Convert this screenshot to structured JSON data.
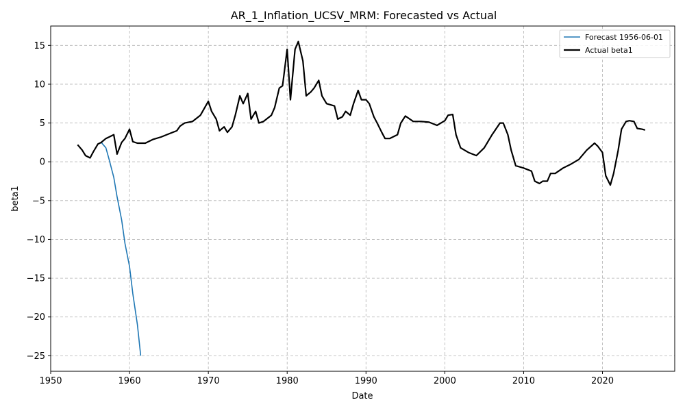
{
  "chart_data": {
    "type": "line",
    "title": "AR_1_Inflation_UCSV_MRM: Forecasted vs Actual",
    "xlabel": "Date",
    "ylabel": "beta1",
    "xlim": [
      "1950-01-01",
      "2029-03-01"
    ],
    "ylim": [
      -27,
      17.5
    ],
    "x_ticks": [
      1950,
      1960,
      1970,
      1980,
      1990,
      2000,
      2010,
      2020
    ],
    "y_ticks": [
      -25,
      -20,
      -15,
      -10,
      -5,
      0,
      5,
      10,
      15
    ],
    "grid": true,
    "legend_position": "top-right",
    "series": [
      {
        "name": "Forecast 1956-06-01",
        "color": "#1f77b4",
        "style": "solid",
        "points": [
          [
            "1956-06-01",
            2.5
          ],
          [
            "1957-01-01",
            1.8
          ],
          [
            "1957-06-01",
            0.3
          ],
          [
            "1958-01-01",
            -2.0
          ],
          [
            "1958-06-01",
            -4.5
          ],
          [
            "1959-01-01",
            -7.5
          ],
          [
            "1959-06-01",
            -10.5
          ],
          [
            "1960-01-01",
            -13.5
          ],
          [
            "1960-06-01",
            -17.0
          ],
          [
            "1961-01-01",
            -21.0
          ],
          [
            "1961-06-01",
            -25.0
          ]
        ]
      },
      {
        "name": "Actual beta1",
        "color": "#000000",
        "style": "solid",
        "points": [
          [
            "1953-06-01",
            2.2
          ],
          [
            "1954-01-01",
            1.5
          ],
          [
            "1954-06-01",
            0.8
          ],
          [
            "1955-01-01",
            0.5
          ],
          [
            "1955-06-01",
            1.3
          ],
          [
            "1956-01-01",
            2.3
          ],
          [
            "1956-06-01",
            2.5
          ],
          [
            "1957-01-01",
            3.0
          ],
          [
            "1957-06-01",
            3.2
          ],
          [
            "1958-01-01",
            3.5
          ],
          [
            "1958-06-01",
            1.0
          ],
          [
            "1959-01-01",
            2.5
          ],
          [
            "1959-06-01",
            3.0
          ],
          [
            "1960-01-01",
            4.2
          ],
          [
            "1960-06-01",
            2.6
          ],
          [
            "1961-01-01",
            2.4
          ],
          [
            "1962-01-01",
            2.4
          ],
          [
            "1963-01-01",
            2.9
          ],
          [
            "1964-01-01",
            3.2
          ],
          [
            "1965-01-01",
            3.6
          ],
          [
            "1966-01-01",
            4.0
          ],
          [
            "1966-06-01",
            4.6
          ],
          [
            "1967-01-01",
            5.0
          ],
          [
            "1968-01-01",
            5.2
          ],
          [
            "1969-01-01",
            6.0
          ],
          [
            "1970-01-01",
            7.8
          ],
          [
            "1970-06-01",
            6.5
          ],
          [
            "1971-01-01",
            5.5
          ],
          [
            "1971-06-01",
            4.0
          ],
          [
            "1972-01-01",
            4.5
          ],
          [
            "1972-06-01",
            3.8
          ],
          [
            "1973-01-01",
            4.5
          ],
          [
            "1973-06-01",
            6.0
          ],
          [
            "1974-01-01",
            8.5
          ],
          [
            "1974-06-01",
            7.5
          ],
          [
            "1975-01-01",
            8.8
          ],
          [
            "1975-06-01",
            5.5
          ],
          [
            "1976-01-01",
            6.5
          ],
          [
            "1976-06-01",
            5.0
          ],
          [
            "1977-01-01",
            5.2
          ],
          [
            "1978-01-01",
            6.0
          ],
          [
            "1978-06-01",
            7.0
          ],
          [
            "1979-01-01",
            9.5
          ],
          [
            "1979-06-01",
            9.8
          ],
          [
            "1980-01-01",
            14.5
          ],
          [
            "1980-06-01",
            8.0
          ],
          [
            "1981-01-01",
            14.5
          ],
          [
            "1981-06-01",
            15.5
          ],
          [
            "1982-01-01",
            13.0
          ],
          [
            "1982-06-01",
            8.5
          ],
          [
            "1983-01-01",
            9.0
          ],
          [
            "1983-06-01",
            9.5
          ],
          [
            "1984-01-01",
            10.5
          ],
          [
            "1984-06-01",
            8.5
          ],
          [
            "1985-01-01",
            7.5
          ],
          [
            "1986-01-01",
            7.2
          ],
          [
            "1986-06-01",
            5.5
          ],
          [
            "1987-01-01",
            5.8
          ],
          [
            "1987-06-01",
            6.5
          ],
          [
            "1988-01-01",
            6.0
          ],
          [
            "1988-06-01",
            7.5
          ],
          [
            "1989-01-01",
            9.2
          ],
          [
            "1989-06-01",
            8.0
          ],
          [
            "1990-01-01",
            8.0
          ],
          [
            "1990-06-01",
            7.5
          ],
          [
            "1991-01-01",
            5.8
          ],
          [
            "1991-06-01",
            5.0
          ],
          [
            "1992-01-01",
            3.8
          ],
          [
            "1992-06-01",
            3.0
          ],
          [
            "1993-01-01",
            3.0
          ],
          [
            "1994-01-01",
            3.5
          ],
          [
            "1994-06-01",
            5.0
          ],
          [
            "1995-01-01",
            5.9
          ],
          [
            "1996-01-01",
            5.2
          ],
          [
            "1997-01-01",
            5.2
          ],
          [
            "1998-01-01",
            5.1
          ],
          [
            "1999-01-01",
            4.7
          ],
          [
            "2000-01-01",
            5.3
          ],
          [
            "2000-06-01",
            6.0
          ],
          [
            "2001-01-01",
            6.1
          ],
          [
            "2001-06-01",
            3.5
          ],
          [
            "2002-01-01",
            1.8
          ],
          [
            "2003-01-01",
            1.2
          ],
          [
            "2004-01-01",
            0.8
          ],
          [
            "2005-01-01",
            1.8
          ],
          [
            "2006-01-01",
            3.5
          ],
          [
            "2007-01-01",
            5.0
          ],
          [
            "2007-06-01",
            5.0
          ],
          [
            "2008-01-01",
            3.5
          ],
          [
            "2008-06-01",
            1.5
          ],
          [
            "2009-01-01",
            -0.5
          ],
          [
            "2010-01-01",
            -0.8
          ],
          [
            "2011-01-01",
            -1.2
          ],
          [
            "2011-06-01",
            -2.5
          ],
          [
            "2012-01-01",
            -2.8
          ],
          [
            "2012-06-01",
            -2.5
          ],
          [
            "2013-01-01",
            -2.5
          ],
          [
            "2013-06-01",
            -1.5
          ],
          [
            "2014-01-01",
            -1.5
          ],
          [
            "2015-01-01",
            -0.8
          ],
          [
            "2016-01-01",
            -0.3
          ],
          [
            "2017-01-01",
            0.3
          ],
          [
            "2018-01-01",
            1.5
          ],
          [
            "2019-01-01",
            2.4
          ],
          [
            "2019-06-01",
            2.0
          ],
          [
            "2020-01-01",
            1.2
          ],
          [
            "2020-06-01",
            -1.8
          ],
          [
            "2021-01-01",
            -3.0
          ],
          [
            "2021-06-01",
            -1.5
          ],
          [
            "2022-01-01",
            1.5
          ],
          [
            "2022-06-01",
            4.2
          ],
          [
            "2023-01-01",
            5.2
          ],
          [
            "2023-06-01",
            5.3
          ],
          [
            "2024-01-01",
            5.2
          ],
          [
            "2024-06-01",
            4.3
          ],
          [
            "2025-01-01",
            4.2
          ],
          [
            "2025-06-01",
            4.1
          ]
        ]
      }
    ]
  }
}
